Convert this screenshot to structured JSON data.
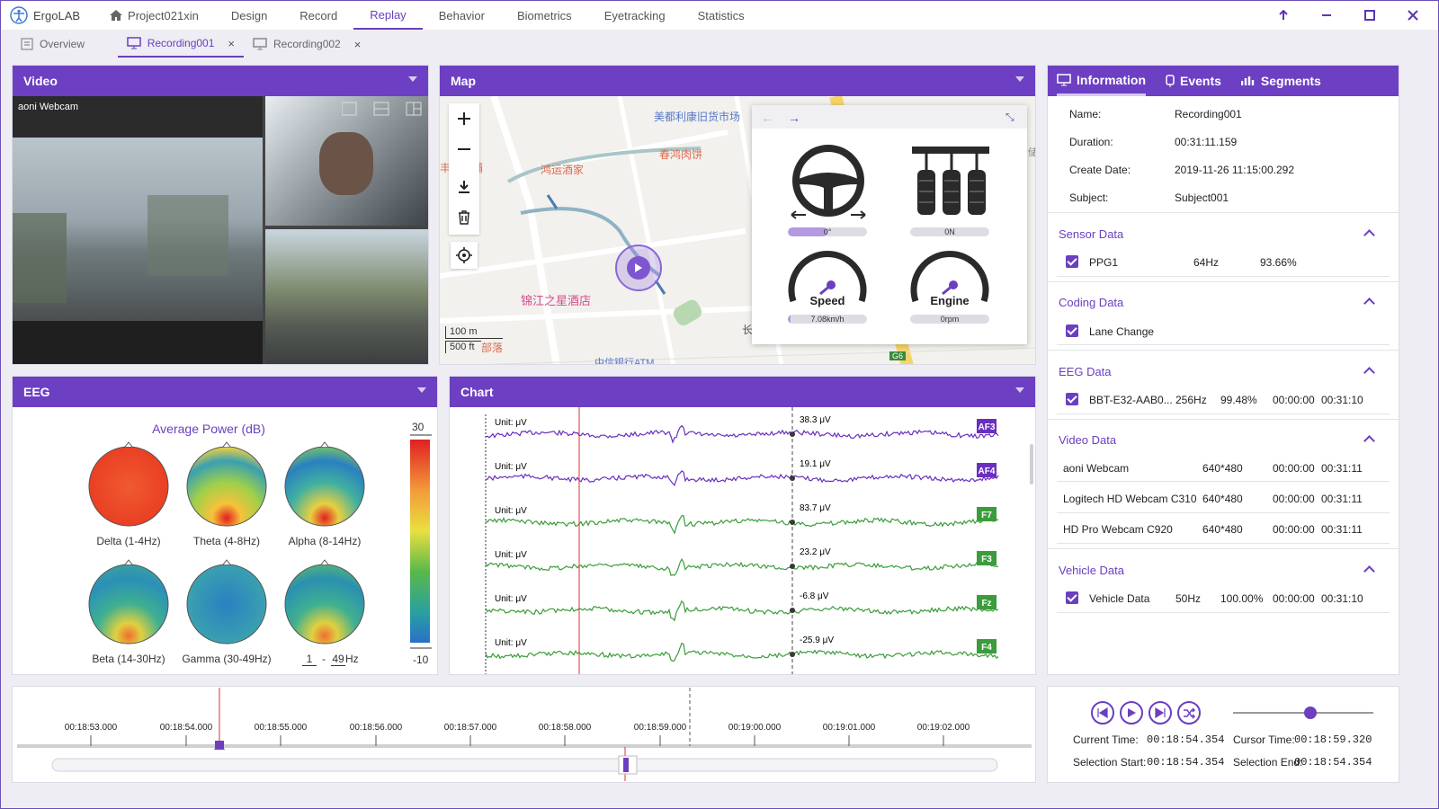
{
  "app": {
    "name": "ErgoLAB",
    "project": "Project021xin",
    "nav": [
      "Design",
      "Record",
      "Replay",
      "Behavior",
      "Biometrics",
      "Eyetracking",
      "Statistics"
    ],
    "active_nav": "Replay"
  },
  "tabs": [
    {
      "label": "Overview"
    },
    {
      "label": "Recording001"
    },
    {
      "label": "Recording002"
    }
  ],
  "video": {
    "title": "Video",
    "camera_label": "aoni Webcam"
  },
  "map": {
    "title": "Map",
    "scale_m": "100 m",
    "scale_ft": "500 ft",
    "labels": [
      "美都利康旧货市场",
      "丰包子铺",
      "鸿运酒家",
      "春鸿肉饼",
      "锦江之星酒店",
      "中信银行ATM",
      "部落",
      "长",
      "G6",
      "储"
    ],
    "vehicle": {
      "steering_value": "0°",
      "steering_fill": 0.5,
      "pedal_value": "0N",
      "pedal_fill": 0.0,
      "speed_label": "Speed",
      "speed_value": "7.08km/h",
      "speed_fill": 0.03,
      "engine_label": "Engine",
      "engine_value": "0rpm",
      "engine_fill": 0.0
    }
  },
  "eeg": {
    "title": "EEG",
    "heading": "Average Power (dB)",
    "scale_max": "30",
    "scale_min": "-10",
    "maps": [
      "Delta (1-4Hz)",
      "Theta (4-8Hz)",
      "Alpha (8-14Hz)",
      "Beta (14-30Hz)",
      "Gamma (30-49Hz)"
    ],
    "custom_from": "1",
    "custom_to": "49",
    "custom_unit": "Hz"
  },
  "chart": {
    "title": "Chart",
    "unit": "Unit: μV",
    "channels": [
      {
        "name": "AF3",
        "value": "38.3 μV",
        "color": "#6a2fbf"
      },
      {
        "name": "AF4",
        "value": "19.1 μV",
        "color": "#6a2fbf"
      },
      {
        "name": "F7",
        "value": "83.7 μV",
        "color": "#3a9c3a"
      },
      {
        "name": "F3",
        "value": "23.2 μV",
        "color": "#3a9c3a"
      },
      {
        "name": "Fz",
        "value": "-6.8 μV",
        "color": "#3a9c3a"
      },
      {
        "name": "F4",
        "value": "-25.9 μV",
        "color": "#3a9c3a"
      }
    ]
  },
  "info": {
    "tabs": [
      "Information",
      "Events",
      "Segments"
    ],
    "fields": [
      {
        "k": "Name:",
        "v": "Recording001"
      },
      {
        "k": "Duration:",
        "v": "00:31:11.159"
      },
      {
        "k": "Create Date:",
        "v": "2019-11-26 11:15:00.292"
      },
      {
        "k": "Subject:",
        "v": "Subject001"
      }
    ],
    "sensor": {
      "title": "Sensor Data",
      "name": "PPG1",
      "rate": "64Hz",
      "pct": "93.66%"
    },
    "coding": {
      "title": "Coding Data",
      "name": "Lane Change"
    },
    "eegdata": {
      "title": "EEG Data",
      "name": "BBT-E32-AAB0...",
      "rate": "256Hz",
      "pct": "99.48%",
      "start": "00:00:00",
      "end": "00:31:10"
    },
    "videodata": {
      "title": "Video Data",
      "rows": [
        {
          "name": "aoni Webcam",
          "res": "640*480",
          "start": "00:00:00",
          "end": "00:31:11"
        },
        {
          "name": "Logitech HD Webcam C310",
          "res": "640*480",
          "start": "00:00:00",
          "end": "00:31:11"
        },
        {
          "name": "HD Pro Webcam C920",
          "res": "640*480",
          "start": "00:00:00",
          "end": "00:31:11"
        }
      ]
    },
    "vehicledata": {
      "title": "Vehicle Data",
      "name": "Vehicle Data",
      "rate": "50Hz",
      "pct": "100.00%",
      "start": "00:00:00",
      "end": "00:31:10"
    }
  },
  "timeline": {
    "ticks": [
      "00:18:53.000",
      "00:18:54.000",
      "00:18:55.000",
      "00:18:56.000",
      "00:18:57.000",
      "00:18:58.000",
      "00:18:59.000",
      "00:19:00.000",
      "00:19:01.000",
      "00:19:02.000"
    ]
  },
  "playback": {
    "current_label": "Current Time:",
    "current": "00:18:54.354",
    "cursor_label": "Cursor Time:",
    "cursor": "00:18:59.320",
    "sel_start_label": "Selection Start:",
    "sel_start": "00:18:54.354",
    "sel_end_label": "Selection End:",
    "sel_end": "00:18:54.354",
    "volume": 0.55
  }
}
